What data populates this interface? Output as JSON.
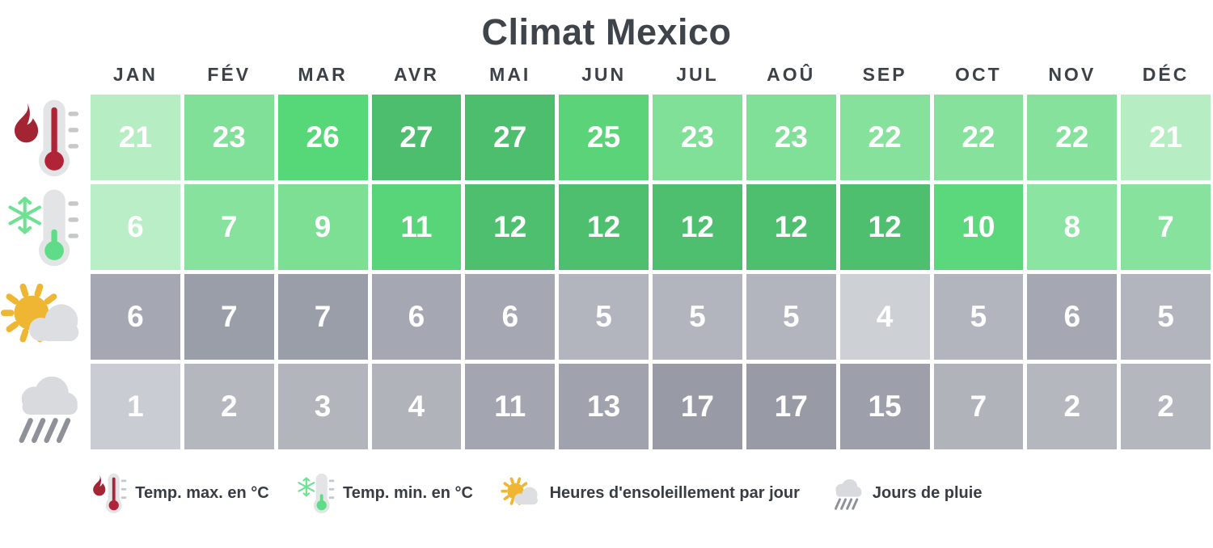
{
  "title": "Climat Mexico",
  "months": [
    "JAN",
    "FÉV",
    "MAR",
    "AVR",
    "MAI",
    "JUN",
    "JUL",
    "AOÛ",
    "SEP",
    "OCT",
    "NOV",
    "DÉC"
  ],
  "rows": [
    {
      "id": "temp-max",
      "icon": "hot-thermometer-icon",
      "label": "Temp. max. en °C",
      "cells": [
        {
          "value": "21",
          "color": "#b6edc3"
        },
        {
          "value": "23",
          "color": "#80e098"
        },
        {
          "value": "26",
          "color": "#57d878"
        },
        {
          "value": "27",
          "color": "#4dbe6d"
        },
        {
          "value": "27",
          "color": "#4dbe6d"
        },
        {
          "value": "25",
          "color": "#5ad379"
        },
        {
          "value": "23",
          "color": "#80e098"
        },
        {
          "value": "23",
          "color": "#80e098"
        },
        {
          "value": "22",
          "color": "#85e19c"
        },
        {
          "value": "22",
          "color": "#85e19c"
        },
        {
          "value": "22",
          "color": "#85e19c"
        },
        {
          "value": "21",
          "color": "#b6edc3"
        }
      ]
    },
    {
      "id": "temp-min",
      "icon": "cold-thermometer-icon",
      "label": "Temp. min. en °C",
      "cells": [
        {
          "value": "6",
          "color": "#baeec6"
        },
        {
          "value": "7",
          "color": "#86e29d"
        },
        {
          "value": "9",
          "color": "#7cdf94"
        },
        {
          "value": "11",
          "color": "#58d578"
        },
        {
          "value": "12",
          "color": "#4dbf6e"
        },
        {
          "value": "12",
          "color": "#4dbf6e"
        },
        {
          "value": "12",
          "color": "#4dbf6e"
        },
        {
          "value": "12",
          "color": "#4dbf6e"
        },
        {
          "value": "12",
          "color": "#4dbf6e"
        },
        {
          "value": "10",
          "color": "#5bd77c"
        },
        {
          "value": "8",
          "color": "#8ce4a2"
        },
        {
          "value": "7",
          "color": "#86e29d"
        }
      ]
    },
    {
      "id": "sunshine",
      "icon": "sun-cloud-icon",
      "label": "Heures d'ensoleillement par jour",
      "cells": [
        {
          "value": "6",
          "color": "#a5a8b2"
        },
        {
          "value": "7",
          "color": "#9a9ea9"
        },
        {
          "value": "7",
          "color": "#9a9ea9"
        },
        {
          "value": "6",
          "color": "#a5a8b2"
        },
        {
          "value": "6",
          "color": "#a5a8b2"
        },
        {
          "value": "5",
          "color": "#b2b5bd"
        },
        {
          "value": "5",
          "color": "#b2b5bd"
        },
        {
          "value": "5",
          "color": "#b2b5bd"
        },
        {
          "value": "4",
          "color": "#cdd0d5"
        },
        {
          "value": "5",
          "color": "#b2b5bd"
        },
        {
          "value": "6",
          "color": "#a5a8b2"
        },
        {
          "value": "5",
          "color": "#b2b5bd"
        }
      ]
    },
    {
      "id": "rain",
      "icon": "rain-cloud-icon",
      "label": "Jours de pluie",
      "cells": [
        {
          "value": "1",
          "color": "#c9ccd2"
        },
        {
          "value": "2",
          "color": "#b4b7be"
        },
        {
          "value": "3",
          "color": "#b2b5bc"
        },
        {
          "value": "4",
          "color": "#b0b3ba"
        },
        {
          "value": "11",
          "color": "#a3a6b0"
        },
        {
          "value": "13",
          "color": "#a0a3ad"
        },
        {
          "value": "17",
          "color": "#989ba6"
        },
        {
          "value": "17",
          "color": "#989ba6"
        },
        {
          "value": "15",
          "color": "#9da0aa"
        },
        {
          "value": "7",
          "color": "#b0b3ba"
        },
        {
          "value": "2",
          "color": "#b4b7be"
        },
        {
          "value": "2",
          "color": "#b4b7be"
        }
      ]
    }
  ],
  "legend": [
    {
      "icon": "hot-thermometer-icon",
      "label": "Temp. max. en °C"
    },
    {
      "icon": "cold-thermometer-icon",
      "label": "Temp. min. en °C"
    },
    {
      "icon": "sun-cloud-icon",
      "label": "Heures d'ensoleillement par jour"
    },
    {
      "icon": "rain-cloud-icon",
      "label": "Jours de pluie"
    }
  ],
  "colors": {
    "title_text": "#3f444b",
    "header_text": "#3d4249",
    "cell_text": "#ffffff",
    "legend_text": "#383d44",
    "green_dark": "#4dbe6d",
    "green_light": "#b6edc3",
    "gray_dark": "#989ba6",
    "gray_light": "#cdd0d5",
    "flame_red": "#a32433",
    "mercury_red": "#b02437",
    "mercury_green": "#5fdc87",
    "snowflake_green": "#6ee292",
    "sun_yellow": "#eeb633",
    "cloud_gray": "#d8dadd",
    "rain_stroke": "#8e9198"
  },
  "chart_data": {
    "type": "heatmap",
    "title": "Climat Mexico",
    "categories": [
      "JAN",
      "FÉV",
      "MAR",
      "AVR",
      "MAI",
      "JUN",
      "JUL",
      "AOÛ",
      "SEP",
      "OCT",
      "NOV",
      "DÉC"
    ],
    "series": [
      {
        "name": "Temp. max. en °C",
        "values": [
          21,
          23,
          26,
          27,
          27,
          25,
          23,
          23,
          22,
          22,
          22,
          21
        ]
      },
      {
        "name": "Temp. min. en °C",
        "values": [
          6,
          7,
          9,
          11,
          12,
          12,
          12,
          12,
          12,
          10,
          8,
          7
        ]
      },
      {
        "name": "Heures d'ensoleillement par jour",
        "values": [
          6,
          7,
          7,
          6,
          6,
          5,
          5,
          5,
          4,
          5,
          6,
          5
        ]
      },
      {
        "name": "Jours de pluie",
        "values": [
          1,
          2,
          3,
          4,
          11,
          13,
          17,
          17,
          15,
          7,
          2,
          2
        ]
      }
    ],
    "legend_position": "bottom",
    "color_scales": {
      "temperature_rows": "light green (low) to dark green (high)",
      "gray_rows": "light gray (low) to dark gray (high)"
    }
  }
}
